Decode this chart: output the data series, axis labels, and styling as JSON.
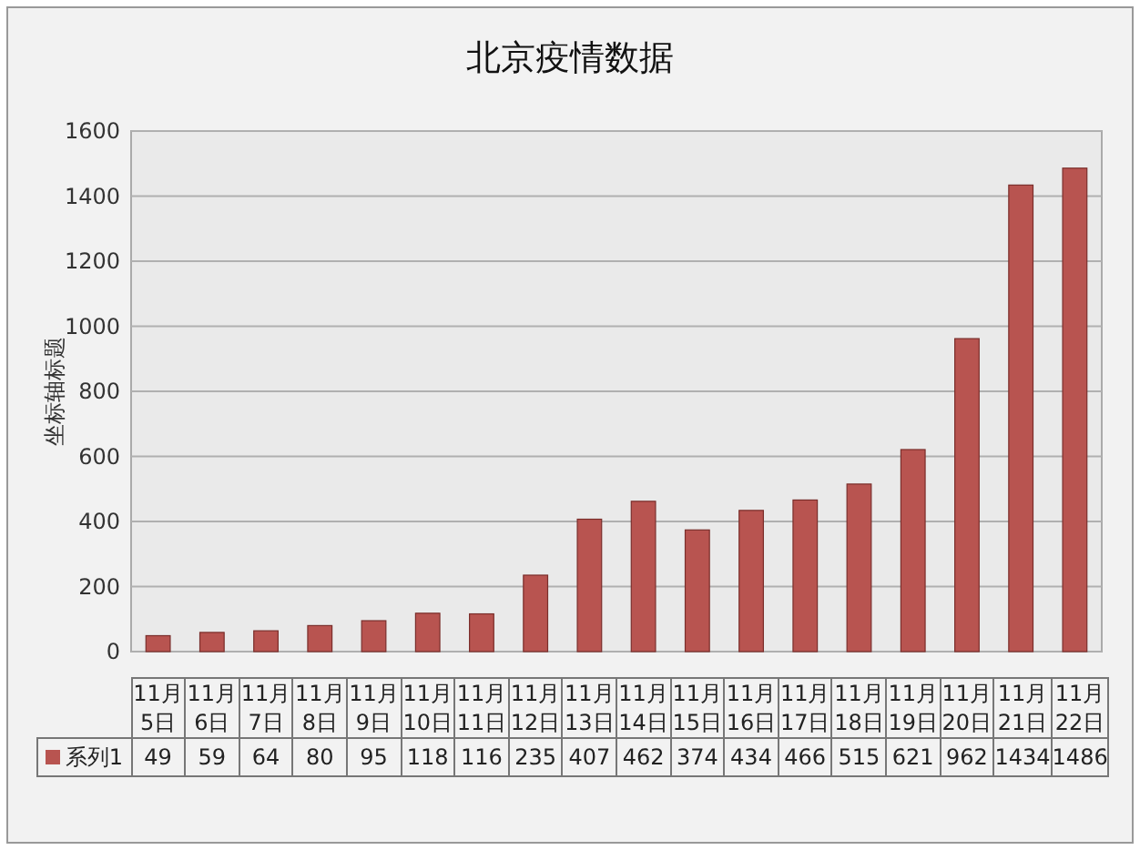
{
  "chart_data": {
    "type": "bar",
    "title": "北京疫情数据",
    "ylabel": "坐标轴标题",
    "categories": [
      "11月5日",
      "11月6日",
      "11月7日",
      "11月8日",
      "11月9日",
      "11月10日",
      "11月11日",
      "11月12日",
      "11月13日",
      "11月14日",
      "11月15日",
      "11月16日",
      "11月17日",
      "11月18日",
      "11月19日",
      "11月20日",
      "11月21日",
      "11月22日"
    ],
    "series": [
      {
        "name": "系列1",
        "color": "#b85450",
        "values": [
          49,
          59,
          64,
          80,
          95,
          118,
          116,
          235,
          407,
          462,
          374,
          434,
          466,
          515,
          621,
          962,
          1434,
          1486
        ]
      }
    ],
    "ylim": [
      0,
      1600
    ],
    "yticks": [
      0,
      200,
      400,
      600,
      800,
      1000,
      1200,
      1400,
      1600
    ],
    "grid": "y",
    "data_labels": true,
    "legend": "bottom"
  }
}
